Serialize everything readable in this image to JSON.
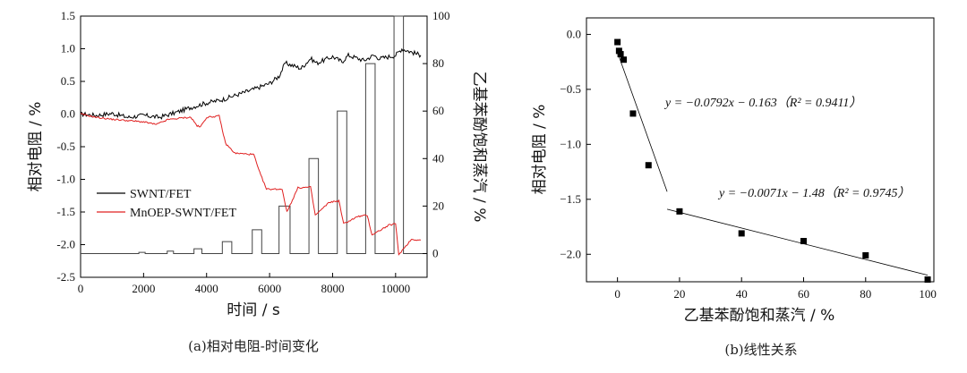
{
  "chart_data": [
    {
      "type": "line",
      "caption": "(a)相对电阻-时间变化",
      "xlabel": "时间 / s",
      "ylabel": "相对电阻 / %",
      "y2label": "乙基苯酚饱和蒸汽 / %",
      "xlim": [
        0,
        11000
      ],
      "ylim": [
        -2.5,
        1.5
      ],
      "y2lim": [
        -10,
        100
      ],
      "xticks": [
        "0",
        "2000",
        "4000",
        "6000",
        "8000",
        "10000"
      ],
      "yticks": [
        "1.5",
        "1.0",
        "0.5",
        "0.0",
        "-0.5",
        "-1.0",
        "-1.5",
        "-2.0",
        "-2.5"
      ],
      "y2ticks": [
        "100",
        "80",
        "60",
        "40",
        "20",
        "0"
      ],
      "legend": "inside-left",
      "series": [
        {
          "name": "SWNT/FET",
          "color": "#000000",
          "x": [
            0,
            500,
            1000,
            1500,
            2000,
            2500,
            3000,
            3500,
            4000,
            4500,
            5000,
            5500,
            6000,
            6300,
            6500,
            7000,
            7300,
            7500,
            8000,
            8300,
            8500,
            9000,
            9300,
            9500,
            10000,
            10200,
            10500,
            10800
          ],
          "y": [
            0.0,
            -0.02,
            0.01,
            -0.05,
            -0.02,
            -0.05,
            0.02,
            0.1,
            0.17,
            0.22,
            0.3,
            0.38,
            0.47,
            0.58,
            0.78,
            0.7,
            0.85,
            0.78,
            0.88,
            0.8,
            0.9,
            0.82,
            0.9,
            0.85,
            0.9,
            1.0,
            0.95,
            0.9
          ]
        },
        {
          "name": "MnOEP-SWNT/FET",
          "color": "#e02020",
          "x": [
            0,
            500,
            1000,
            1500,
            2000,
            2400,
            2800,
            2900,
            3200,
            3500,
            3700,
            3800,
            4000,
            4400,
            4600,
            4900,
            5500,
            5650,
            5900,
            6400,
            6550,
            6900,
            7300,
            7450,
            7900,
            8200,
            8350,
            8800,
            9100,
            9250,
            9800,
            10000,
            10100,
            10500,
            10800
          ],
          "y": [
            0.0,
            -0.05,
            -0.08,
            -0.1,
            -0.12,
            -0.16,
            -0.08,
            -0.08,
            -0.06,
            -0.05,
            -0.18,
            -0.2,
            -0.05,
            -0.03,
            -0.45,
            -0.6,
            -0.62,
            -0.85,
            -1.15,
            -1.15,
            -1.5,
            -1.13,
            -1.12,
            -1.55,
            -1.35,
            -1.33,
            -1.68,
            -1.57,
            -1.55,
            -1.85,
            -1.7,
            -1.68,
            -2.15,
            -1.92,
            -1.93
          ]
        },
        {
          "name": "乙基苯酚饱和蒸汽",
          "axis": "y2",
          "type": "bar-steps",
          "color": "#444444",
          "bars": [
            {
              "start": 950,
              "end": 1050,
              "value": 0
            },
            {
              "start": 1850,
              "end": 2050,
              "value": 0.5
            },
            {
              "start": 2750,
              "end": 2950,
              "value": 1
            },
            {
              "start": 3600,
              "end": 3850,
              "value": 2
            },
            {
              "start": 4500,
              "end": 4800,
              "value": 5
            },
            {
              "start": 5450,
              "end": 5750,
              "value": 10
            },
            {
              "start": 6300,
              "end": 6650,
              "value": 20
            },
            {
              "start": 7250,
              "end": 7550,
              "value": 40
            },
            {
              "start": 8150,
              "end": 8450,
              "value": 60
            },
            {
              "start": 9050,
              "end": 9350,
              "value": 80
            },
            {
              "start": 9950,
              "end": 10250,
              "value": 100
            }
          ]
        }
      ]
    },
    {
      "type": "scatter",
      "caption": "(b)线性关系",
      "xlabel": "乙基苯酚饱和蒸汽 / %",
      "ylabel": "相对电阻 / %",
      "xlim": [
        -10,
        102
      ],
      "ylim": [
        -2.25,
        0.15
      ],
      "xticks": [
        "0",
        "20",
        "40",
        "60",
        "80",
        "100"
      ],
      "yticks": [
        "0.0",
        "-0.5",
        "-1.0",
        "-1.5",
        "-2.0"
      ],
      "series": [
        {
          "name": "data",
          "color": "#000000",
          "x": [
            0,
            0.5,
            1,
            2,
            5,
            10,
            20,
            40,
            60,
            80,
            100
          ],
          "y": [
            -0.07,
            -0.15,
            -0.18,
            -0.23,
            -0.72,
            -1.19,
            -1.61,
            -1.81,
            -1.88,
            -2.01,
            -2.23
          ]
        }
      ],
      "fits": [
        {
          "x": [
            0,
            16
          ],
          "y": [
            -0.163,
            -1.43
          ]
        },
        {
          "x": [
            16,
            100
          ],
          "y": [
            -1.59,
            -2.19
          ]
        }
      ],
      "annotations": [
        {
          "text": "y = −0.0792x − 0.163（R² = 0.9411）"
        },
        {
          "text": "y = −0.0071x − 1.48（R² = 0.9745）"
        }
      ]
    }
  ]
}
